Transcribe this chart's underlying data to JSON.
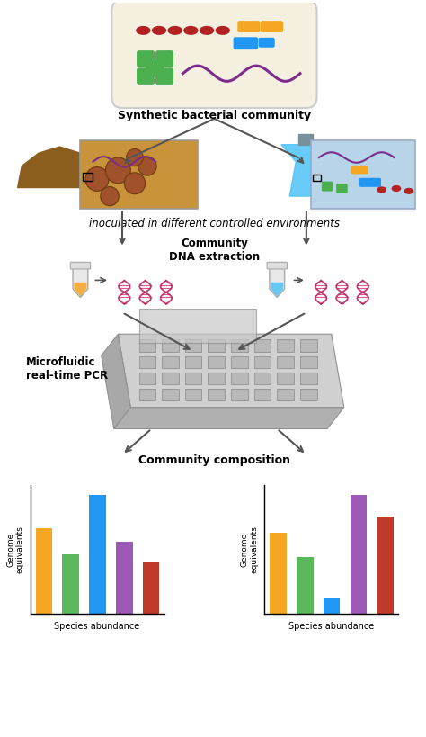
{
  "title": "",
  "background_color": "#ffffff",
  "fig_width": 4.74,
  "fig_height": 8.19,
  "text_synthetic": "Synthetic bacterial community",
  "text_inoculated": "inoculated in different controlled environments",
  "text_community_dna": "Community\nDNA extraction",
  "text_pcr": "Microfluidic\nreal-time PCR",
  "text_composition": "Community composition",
  "text_ylabel": "Genome\nequivalents",
  "text_xlabel": "Species abundance",
  "bar_colors": [
    "#F5A623",
    "#5CB85C",
    "#2196F3",
    "#9C59B6",
    "#C0392B"
  ],
  "chart1_values": [
    0.65,
    0.45,
    0.9,
    0.55,
    0.4
  ],
  "chart2_values": [
    0.6,
    0.42,
    0.12,
    0.88,
    0.72
  ],
  "cell_bg": "#F5F0E0",
  "cell_border": "#CCCCCC",
  "soil_color": "#8B5E1E",
  "flask_color": "#4FC3F7",
  "soil_env_color": "#C8933A",
  "liquid_env_color": "#B8D4E8",
  "dna_color": "#C2185B",
  "pcr_plate_color": "#C0C0C0",
  "pcr_plate_dark": "#A0A0A0",
  "arrow_color": "#555555"
}
